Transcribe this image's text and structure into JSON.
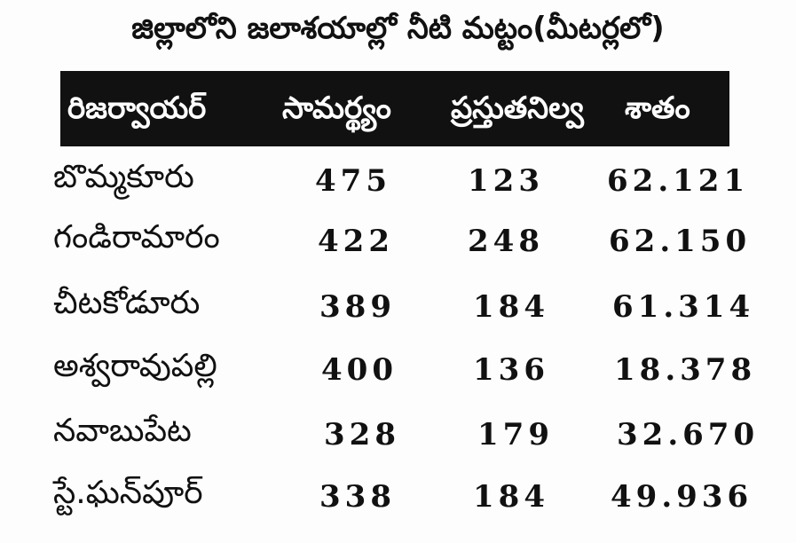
{
  "header": {
    "title": "జిల్లాలోని జలాశయాల్లో నీటి మట్టం(మీటర్లలో)"
  },
  "table": {
    "columns": [
      "రిజర్వాయర్",
      "సామర్థ్యం",
      "ప్రస్తుతనిల్వ",
      "శాతం"
    ],
    "rows": [
      [
        "బొమ్మకూరు",
        "475",
        "123",
        "62.121"
      ],
      [
        "గండిరామారం",
        "422",
        "248",
        "62.150"
      ],
      [
        "చీటకోడూరు",
        "389",
        "184",
        "61.314"
      ],
      [
        "అశ్వరావుపల్లి",
        "400",
        "136",
        "18.378"
      ],
      [
        "నవాబుపేట",
        "328",
        "179",
        "32.670"
      ],
      [
        "స్టే.ఘన్‌పూర్",
        "338",
        "184",
        "49.936"
      ]
    ]
  }
}
